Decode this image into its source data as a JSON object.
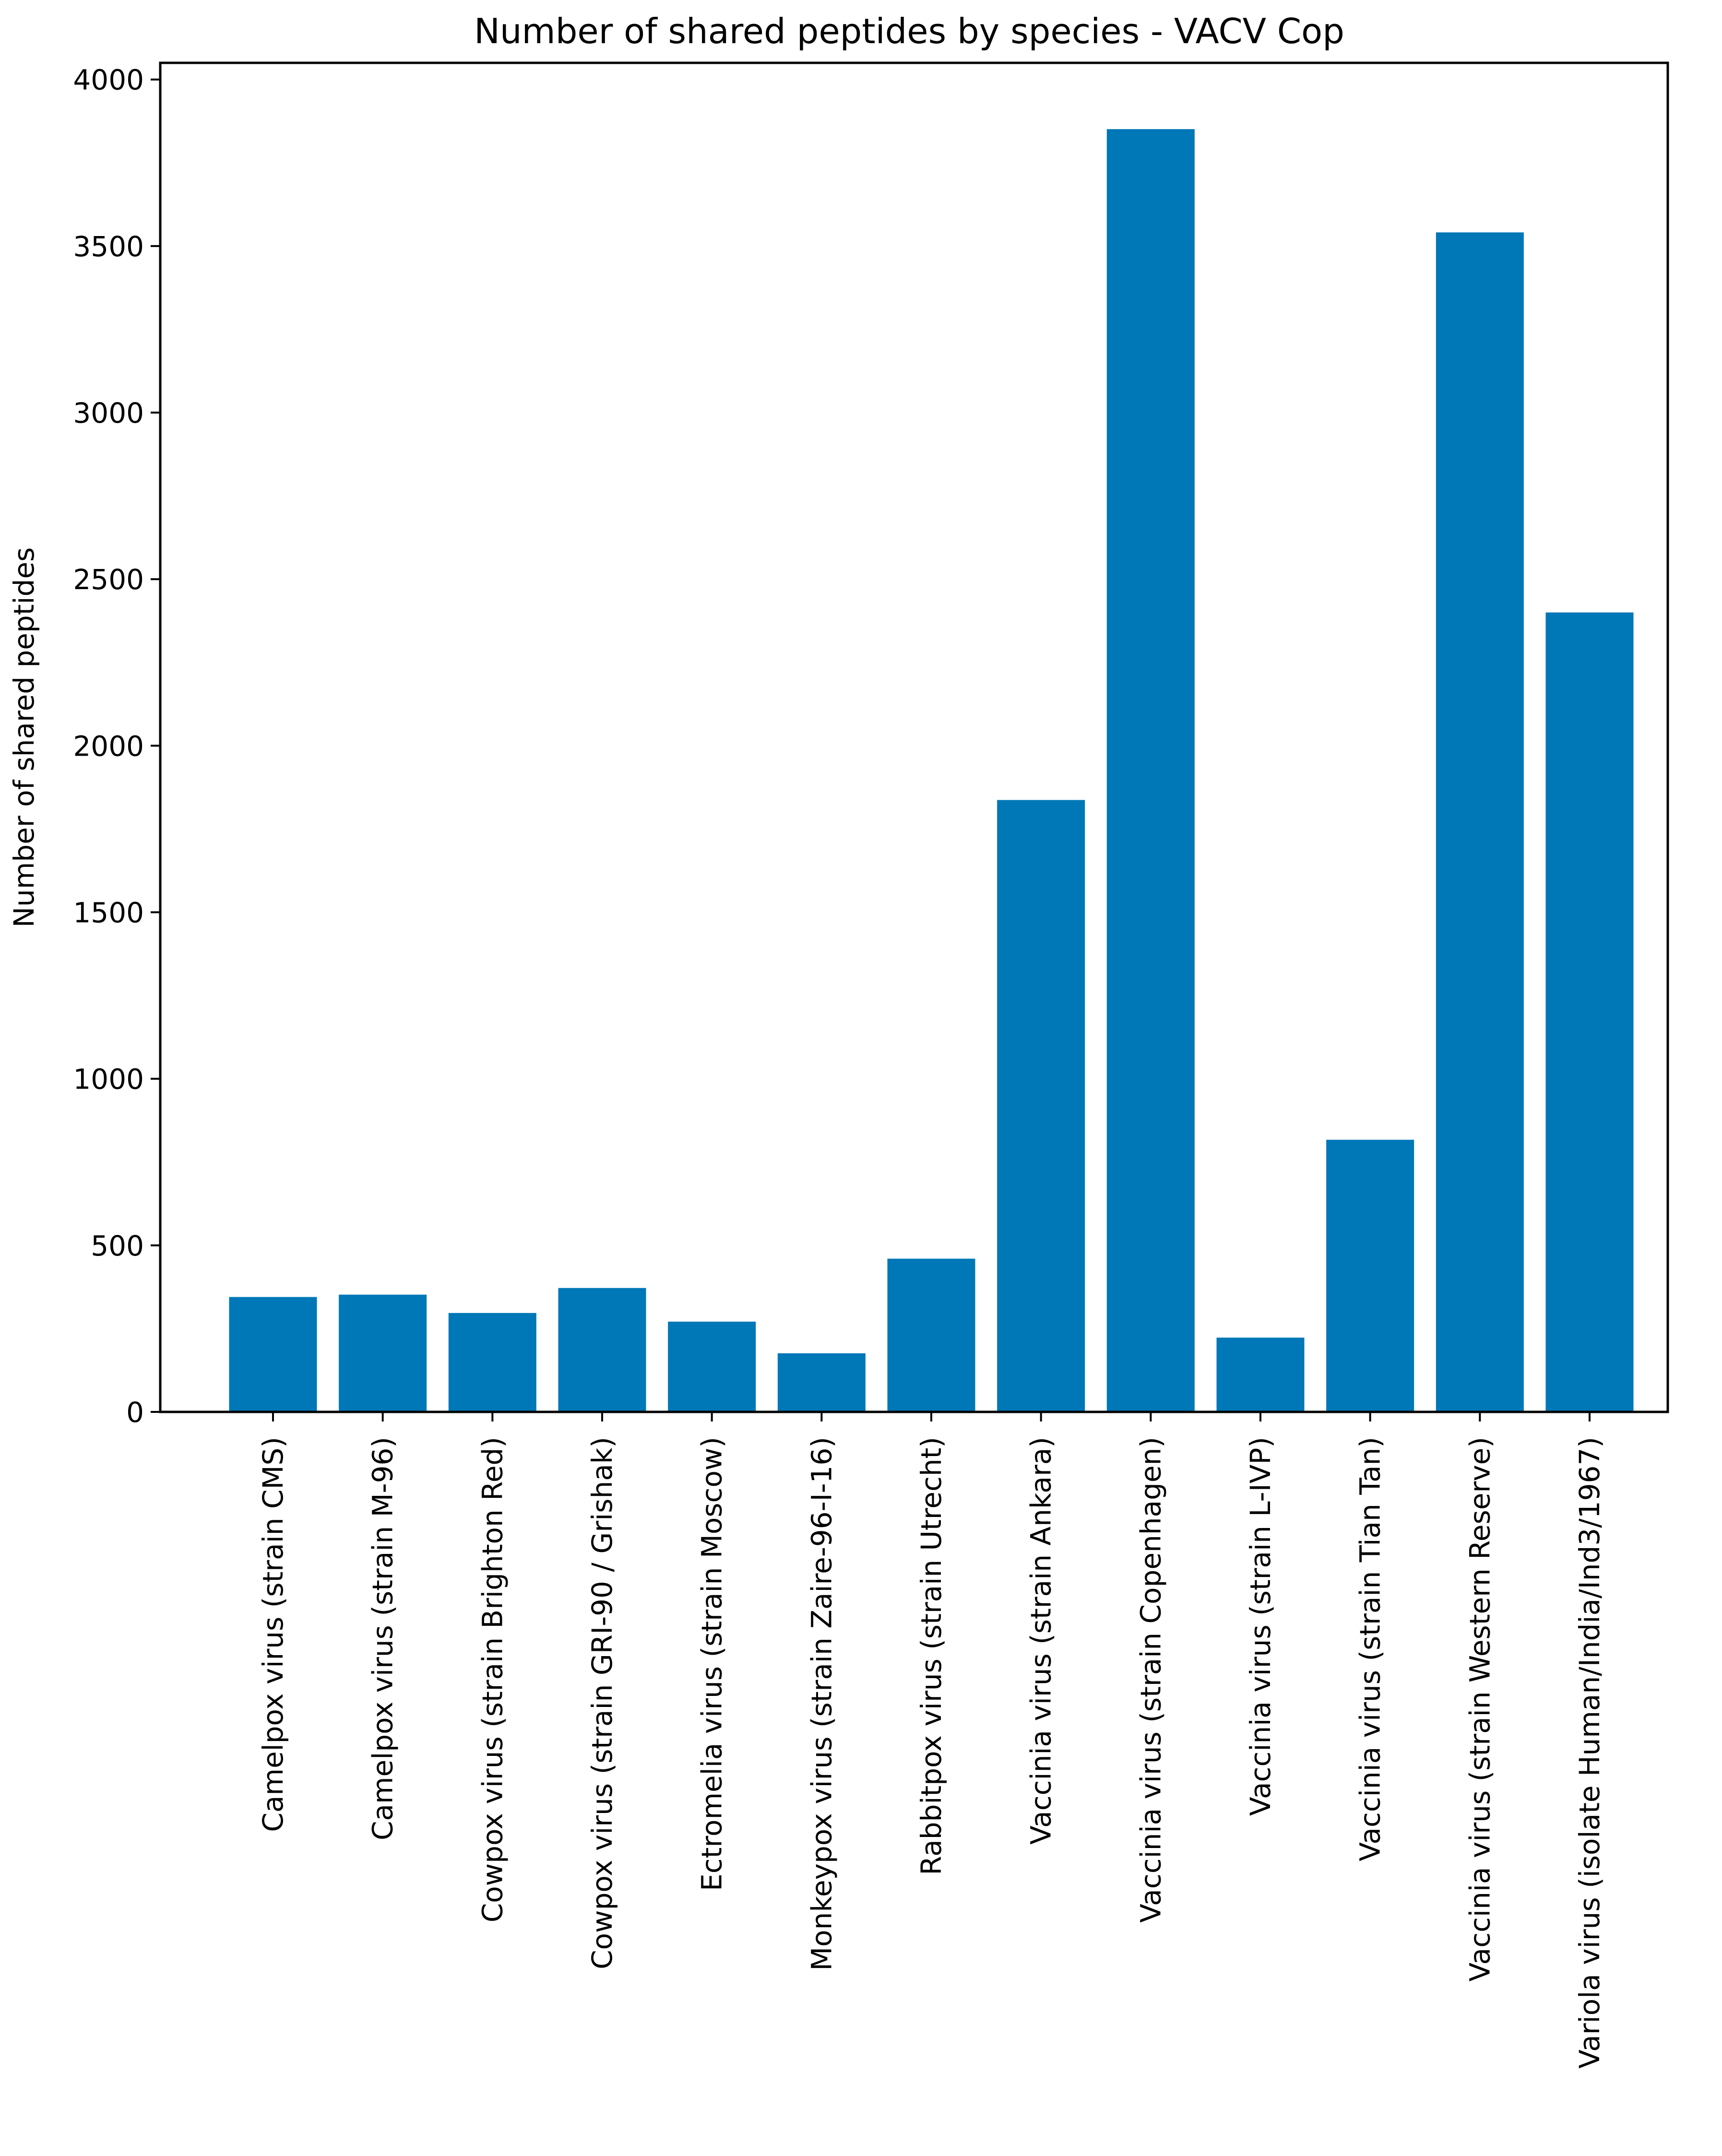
{
  "chart_data": {
    "type": "bar",
    "title": "Number of shared peptides by species - VACV  Cop",
    "xlabel": "",
    "ylabel": "Number of shared peptides",
    "ylim": [
      0,
      4050
    ],
    "yticks": [
      0,
      500,
      1000,
      1500,
      2000,
      2500,
      3000,
      3500,
      4000
    ],
    "grid": false,
    "bar_color": "#0077b6",
    "categories": [
      "Camelpox virus (strain CMS)",
      "Camelpox virus (strain M-96)",
      "Cowpox virus (strain Brighton Red)",
      "Cowpox virus (strain GRI-90 / Grishak)",
      "Ectromelia virus (strain Moscow)",
      "Monkeypox virus (strain Zaire-96-I-16)",
      "Rabbitpox virus (strain Utrecht)",
      "Vaccinia virus (strain Ankara)",
      "Vaccinia virus (strain Copenhagen)",
      "Vaccinia virus (strain L-IVP)",
      "Vaccinia virus (strain Tian Tan)",
      "Vaccinia virus (strain Western Reserve)",
      "Variola virus (isolate Human/India/Ind3/1967)"
    ],
    "values": [
      345,
      352,
      297,
      372,
      271,
      176,
      460,
      1837,
      3851,
      223,
      817,
      3541,
      2400
    ]
  }
}
